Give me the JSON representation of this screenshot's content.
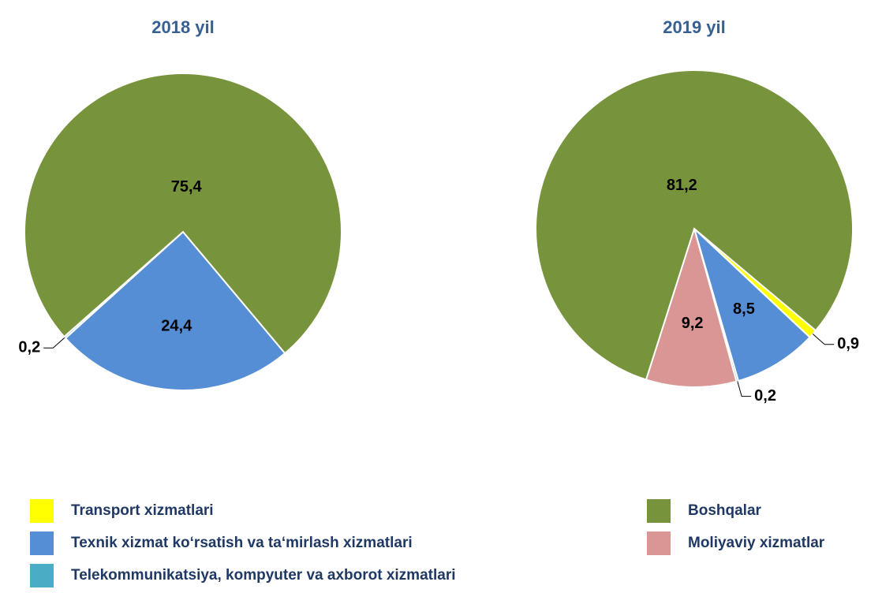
{
  "chart_data": [
    {
      "type": "pie",
      "title": "2018 yil",
      "categories": [
        "Texnik xizmat ko‘rsatish va ta‘mirlash xizmatlari",
        "Telekommunikatsiya, kompyuter va axborot xizmatlari",
        "Boshqalar"
      ],
      "values": [
        24.4,
        0.2,
        75.4
      ],
      "value_labels": [
        "24,4",
        "0,2",
        "75,4"
      ],
      "colors": [
        "#558ed5",
        "#4bacc6",
        "#77933c"
      ]
    },
    {
      "type": "pie",
      "title": "2019 yil",
      "categories": [
        "Transport xizmatlari",
        "Texnik xizmat ko‘rsatish va ta‘mirlash xizmatlari",
        "Telekommunikatsiya, kompyuter va axborot xizmatlari",
        "Moliyaviy xizmatlar",
        "Boshqalar"
      ],
      "values": [
        0.9,
        8.5,
        0.2,
        9.2,
        81.2
      ],
      "value_labels": [
        "0,9",
        "8,5",
        "0,2",
        "9,2",
        "81,2"
      ],
      "colors": [
        "#ffff00",
        "#558ed5",
        "#4bacc6",
        "#d99694",
        "#77933c"
      ]
    }
  ],
  "legend": [
    {
      "name": "Transport xizmatlari",
      "color": "#ffff00"
    },
    {
      "name": "Texnik xizmat ko‘rsatish va ta‘mirlash xizmatlari",
      "color": "#558ed5"
    },
    {
      "name": "Telekommunikatsiya, kompyuter va axborot xizmatlari",
      "color": "#4bacc6"
    },
    {
      "name": "Boshqalar",
      "color": "#77933c"
    },
    {
      "name": "Moliyaviy xizmatlar",
      "color": "#d99694"
    }
  ]
}
